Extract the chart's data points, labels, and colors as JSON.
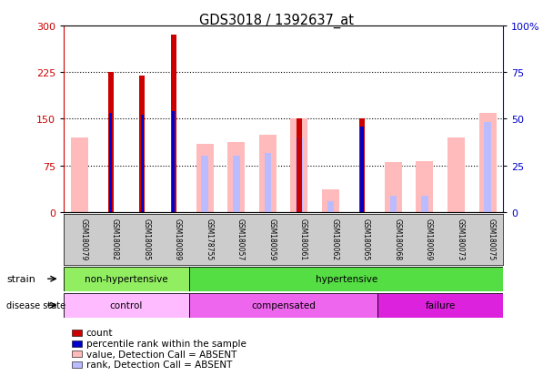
{
  "title": "GDS3018 / 1392637_at",
  "samples": [
    "GSM180079",
    "GSM180082",
    "GSM180085",
    "GSM180089",
    "GSM178755",
    "GSM180057",
    "GSM180059",
    "GSM180061",
    "GSM180062",
    "GSM180065",
    "GSM180068",
    "GSM180069",
    "GSM180073",
    "GSM180075"
  ],
  "count_values": [
    0,
    225,
    220,
    285,
    0,
    0,
    0,
    150,
    0,
    150,
    0,
    0,
    0,
    0
  ],
  "percentile_rank_left": [
    0,
    160,
    157,
    163,
    0,
    0,
    0,
    0,
    0,
    138,
    0,
    0,
    0,
    0
  ],
  "value_absent": [
    120,
    0,
    0,
    0,
    110,
    113,
    125,
    150,
    37,
    0,
    80,
    82,
    120,
    160
  ],
  "rank_absent_left": [
    0,
    0,
    0,
    0,
    90,
    90,
    95,
    120,
    17,
    0,
    26,
    26,
    0,
    145
  ],
  "ylim_left": [
    0,
    300
  ],
  "ylim_right": [
    0,
    100
  ],
  "yticks_left": [
    0,
    75,
    150,
    225,
    300
  ],
  "yticks_right": [
    0,
    25,
    50,
    75,
    100
  ],
  "strain_groups": [
    {
      "label": "non-hypertensive",
      "start": 0,
      "end": 4,
      "color": "#66dd55"
    },
    {
      "label": "hypertensive",
      "start": 4,
      "end": 14,
      "color": "#66dd55"
    }
  ],
  "strain_divider": 4,
  "disease_groups": [
    {
      "label": "control",
      "start": 0,
      "end": 4,
      "color": "#ee88ee"
    },
    {
      "label": "compensated",
      "start": 4,
      "end": 10,
      "color": "#ee88ee"
    },
    {
      "label": "failure",
      "start": 10,
      "end": 14,
      "color": "#cc44cc"
    }
  ],
  "count_color": "#cc0000",
  "percentile_color": "#0000cc",
  "value_absent_color": "#ffbbbb",
  "rank_absent_color": "#bbbbff",
  "grid_color": "#555555",
  "plot_bg": "#ffffff",
  "left_axis_color": "#cc0000",
  "right_axis_color": "#0000cc",
  "label_bg_color": "#cccccc"
}
